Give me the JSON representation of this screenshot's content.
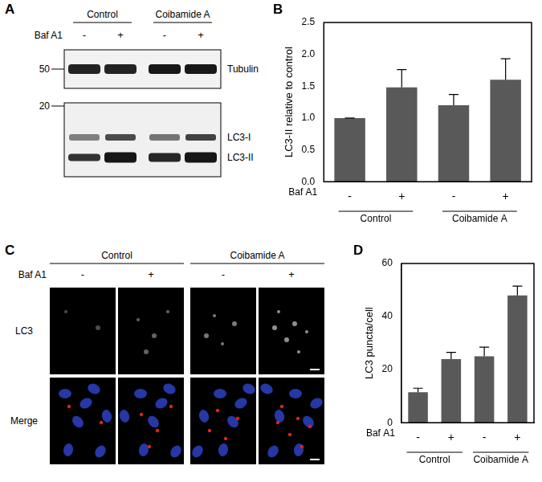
{
  "panel_labels": [
    "A",
    "B",
    "C",
    "D"
  ],
  "blot": {
    "groups": [
      "Control",
      "Coibamide A"
    ],
    "treatment": "Baf A1",
    "lanes": [
      "-",
      "+",
      "-",
      "+"
    ],
    "markers": [
      50,
      20
    ],
    "bands": [
      "Tubulin",
      "LC3-I",
      "LC3-II"
    ]
  },
  "images": {
    "groups": [
      "Control",
      "Coibamide A"
    ],
    "treatment": "Baf A1",
    "lanes": [
      "-",
      "+",
      "-",
      "+"
    ],
    "rows": [
      "LC3",
      "Merge"
    ]
  },
  "chart_data": [
    {
      "type": "bar",
      "categories": [
        "-",
        "+",
        "-",
        "+"
      ],
      "groups": [
        "Control",
        "Coibamide A"
      ],
      "xlabel": "Baf A1",
      "ylabel": "LC3-II relative to control",
      "values": [
        1.0,
        1.48,
        1.2,
        1.6
      ],
      "errors": [
        0,
        0.28,
        0.17,
        0.33
      ],
      "color": "#595959",
      "ylim": [
        0,
        2.5
      ],
      "yticks": [
        {
          "value": 0,
          "label": "0.0"
        },
        0.5,
        {
          "value": 1,
          "label": "1.0"
        },
        1.5,
        {
          "value": 2,
          "label": "2.0"
        },
        2.5
      ],
      "grid": false
    },
    {
      "type": "bar",
      "categories": [
        "-",
        "+",
        "-",
        "+"
      ],
      "groups": [
        "Control",
        "Coibamide A"
      ],
      "xlabel": "Baf A1",
      "ylabel": "LC3 puncta/cell",
      "values": [
        11.5,
        24,
        25,
        48
      ],
      "errors": [
        1.5,
        2.5,
        3.5,
        3.5
      ],
      "color": "#595959",
      "ylim": [
        0,
        60
      ],
      "yticks": [
        0,
        20,
        40,
        60
      ],
      "grid": false
    }
  ]
}
